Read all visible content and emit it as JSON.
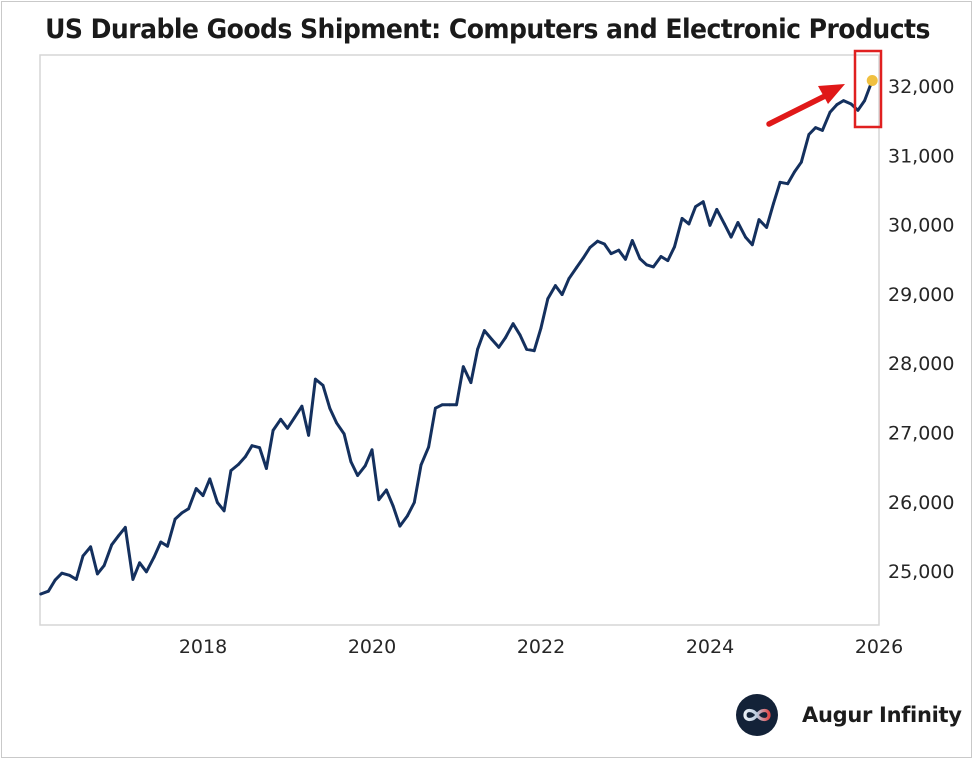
{
  "chart_data": {
    "type": "line",
    "title": "US Durable Goods Shipment: Computers and Electronic Products",
    "xlabel": "",
    "ylabel": "",
    "x_ticks": [
      "2018",
      "2020",
      "2022",
      "2024",
      "2026"
    ],
    "y_ticks": [
      "25,000",
      "26,000",
      "27,000",
      "28,000",
      "29,000",
      "30,000",
      "31,000",
      "32,000"
    ],
    "y_tick_values": [
      25000,
      26000,
      27000,
      28000,
      29000,
      30000,
      31000,
      32000
    ],
    "x_tick_values": [
      2018,
      2020,
      2022,
      2024,
      2026
    ],
    "xlim": [
      2016.07,
      2026.0
    ],
    "ylim": [
      24300,
      32500
    ],
    "y_axis_position": "right",
    "grid": false,
    "series": [
      {
        "name": "Computers and Electronic Products Shipments",
        "color": "#14305e",
        "x": [
          2016.08,
          2016.17,
          2016.25,
          2016.33,
          2016.42,
          2016.5,
          2016.58,
          2016.67,
          2016.75,
          2016.83,
          2016.92,
          2017.0,
          2017.08,
          2017.17,
          2017.25,
          2017.33,
          2017.42,
          2017.5,
          2017.58,
          2017.67,
          2017.75,
          2017.83,
          2017.92,
          2018.0,
          2018.08,
          2018.17,
          2018.25,
          2018.33,
          2018.42,
          2018.5,
          2018.58,
          2018.67,
          2018.75,
          2018.83,
          2018.92,
          2019.0,
          2019.08,
          2019.17,
          2019.25,
          2019.33,
          2019.42,
          2019.5,
          2019.58,
          2019.67,
          2019.75,
          2019.83,
          2019.92,
          2020.0,
          2020.08,
          2020.17,
          2020.25,
          2020.33,
          2020.42,
          2020.5,
          2020.58,
          2020.67,
          2020.75,
          2020.83,
          2020.92,
          2021.0,
          2021.08,
          2021.17,
          2021.25,
          2021.33,
          2021.42,
          2021.5,
          2021.58,
          2021.67,
          2021.75,
          2021.83,
          2021.92,
          2022.0,
          2022.08,
          2022.17,
          2022.25,
          2022.33,
          2022.42,
          2022.5,
          2022.58,
          2022.67,
          2022.75,
          2022.83,
          2022.92,
          2023.0,
          2023.08,
          2023.17,
          2023.25,
          2023.33,
          2023.42,
          2023.5,
          2023.58,
          2023.67,
          2023.75,
          2023.83,
          2023.92,
          2024.0,
          2024.08,
          2024.17,
          2024.25,
          2024.33,
          2024.42,
          2024.5,
          2024.58,
          2024.67,
          2024.75,
          2024.83,
          2024.92,
          2025.0,
          2025.08,
          2025.17,
          2025.25,
          2025.33,
          2025.42,
          2025.5,
          2025.58,
          2025.67,
          2025.75,
          2025.83,
          2025.92
        ],
        "values": [
          24670,
          24710,
          24870,
          24970,
          24940,
          24880,
          25220,
          25350,
          24960,
          25080,
          25380,
          25510,
          25630,
          24880,
          25120,
          24990,
          25200,
          25420,
          25360,
          25750,
          25840,
          25900,
          26190,
          26090,
          26330,
          25990,
          25870,
          26450,
          26540,
          26650,
          26810,
          26780,
          26480,
          27030,
          27190,
          27060,
          27210,
          27380,
          26960,
          27770,
          27680,
          27350,
          27140,
          26980,
          26580,
          26380,
          26520,
          26750,
          26030,
          26170,
          25940,
          25650,
          25800,
          25990,
          26530,
          26790,
          27350,
          27400,
          27400,
          27400,
          27950,
          27720,
          28200,
          28470,
          28340,
          28230,
          28370,
          28570,
          28410,
          28200,
          28180,
          28510,
          28930,
          29120,
          28990,
          29220,
          29380,
          29520,
          29670,
          29760,
          29720,
          29580,
          29630,
          29500,
          29770,
          29510,
          29420,
          29390,
          29540,
          29480,
          29680,
          30090,
          30010,
          30260,
          30330,
          29990,
          30220,
          30010,
          29820,
          30030,
          29820,
          29710,
          30070,
          29960,
          30300,
          30610,
          30590,
          30760,
          30900,
          31300,
          31400,
          31360,
          31620,
          31730,
          31790,
          31740,
          31650,
          31790,
          32080
        ]
      }
    ],
    "highlight": {
      "label": "latest point",
      "value": 32080,
      "marker_color": "#f0c040",
      "box_color": "#e02020",
      "arrow_color": "#e01818"
    }
  },
  "brand": {
    "name": "Augur Infinity",
    "logo_icon": "infinity-icon"
  }
}
